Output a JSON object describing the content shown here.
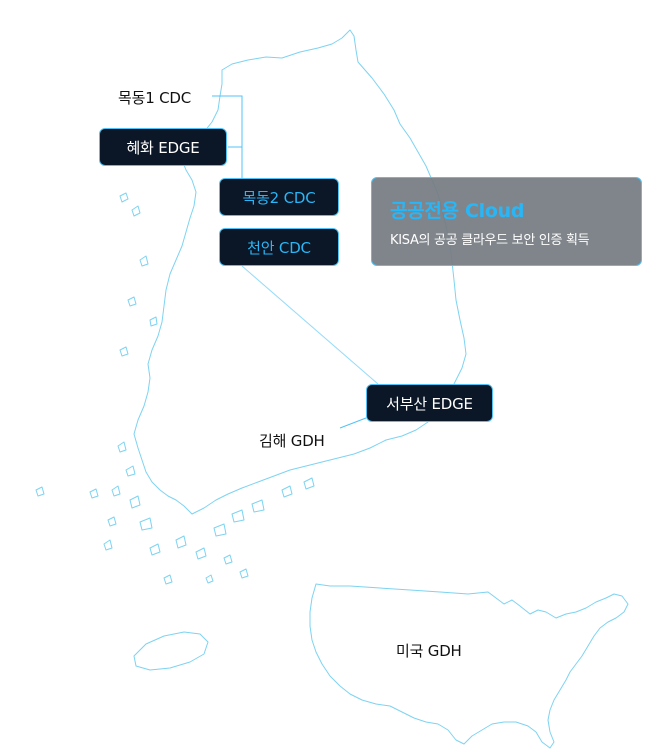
{
  "map": {
    "outline_color": "#7dd3f2",
    "connector_color": "#4fc3f7"
  },
  "locations": {
    "mokdong1_cdc": "목동1 CDC",
    "hyehwa_edge": "혜화 EDGE",
    "mokdong2_cdc": "목동2 CDC",
    "cheonan_cdc": "천안 CDC",
    "seobusan_edge": "서부산 EDGE",
    "gimhae_gdh": "김해 GDH",
    "usa_gdh": "미국 GDH"
  },
  "info_card": {
    "title": "공공전용 Cloud",
    "description": "KISA의 공공 클라우드 보안 인증 획득"
  },
  "colors": {
    "node_bg": "#0b1626",
    "node_border": "#4fc3f7",
    "accent_text": "#29b6f6",
    "card_bg": "#767c82"
  }
}
